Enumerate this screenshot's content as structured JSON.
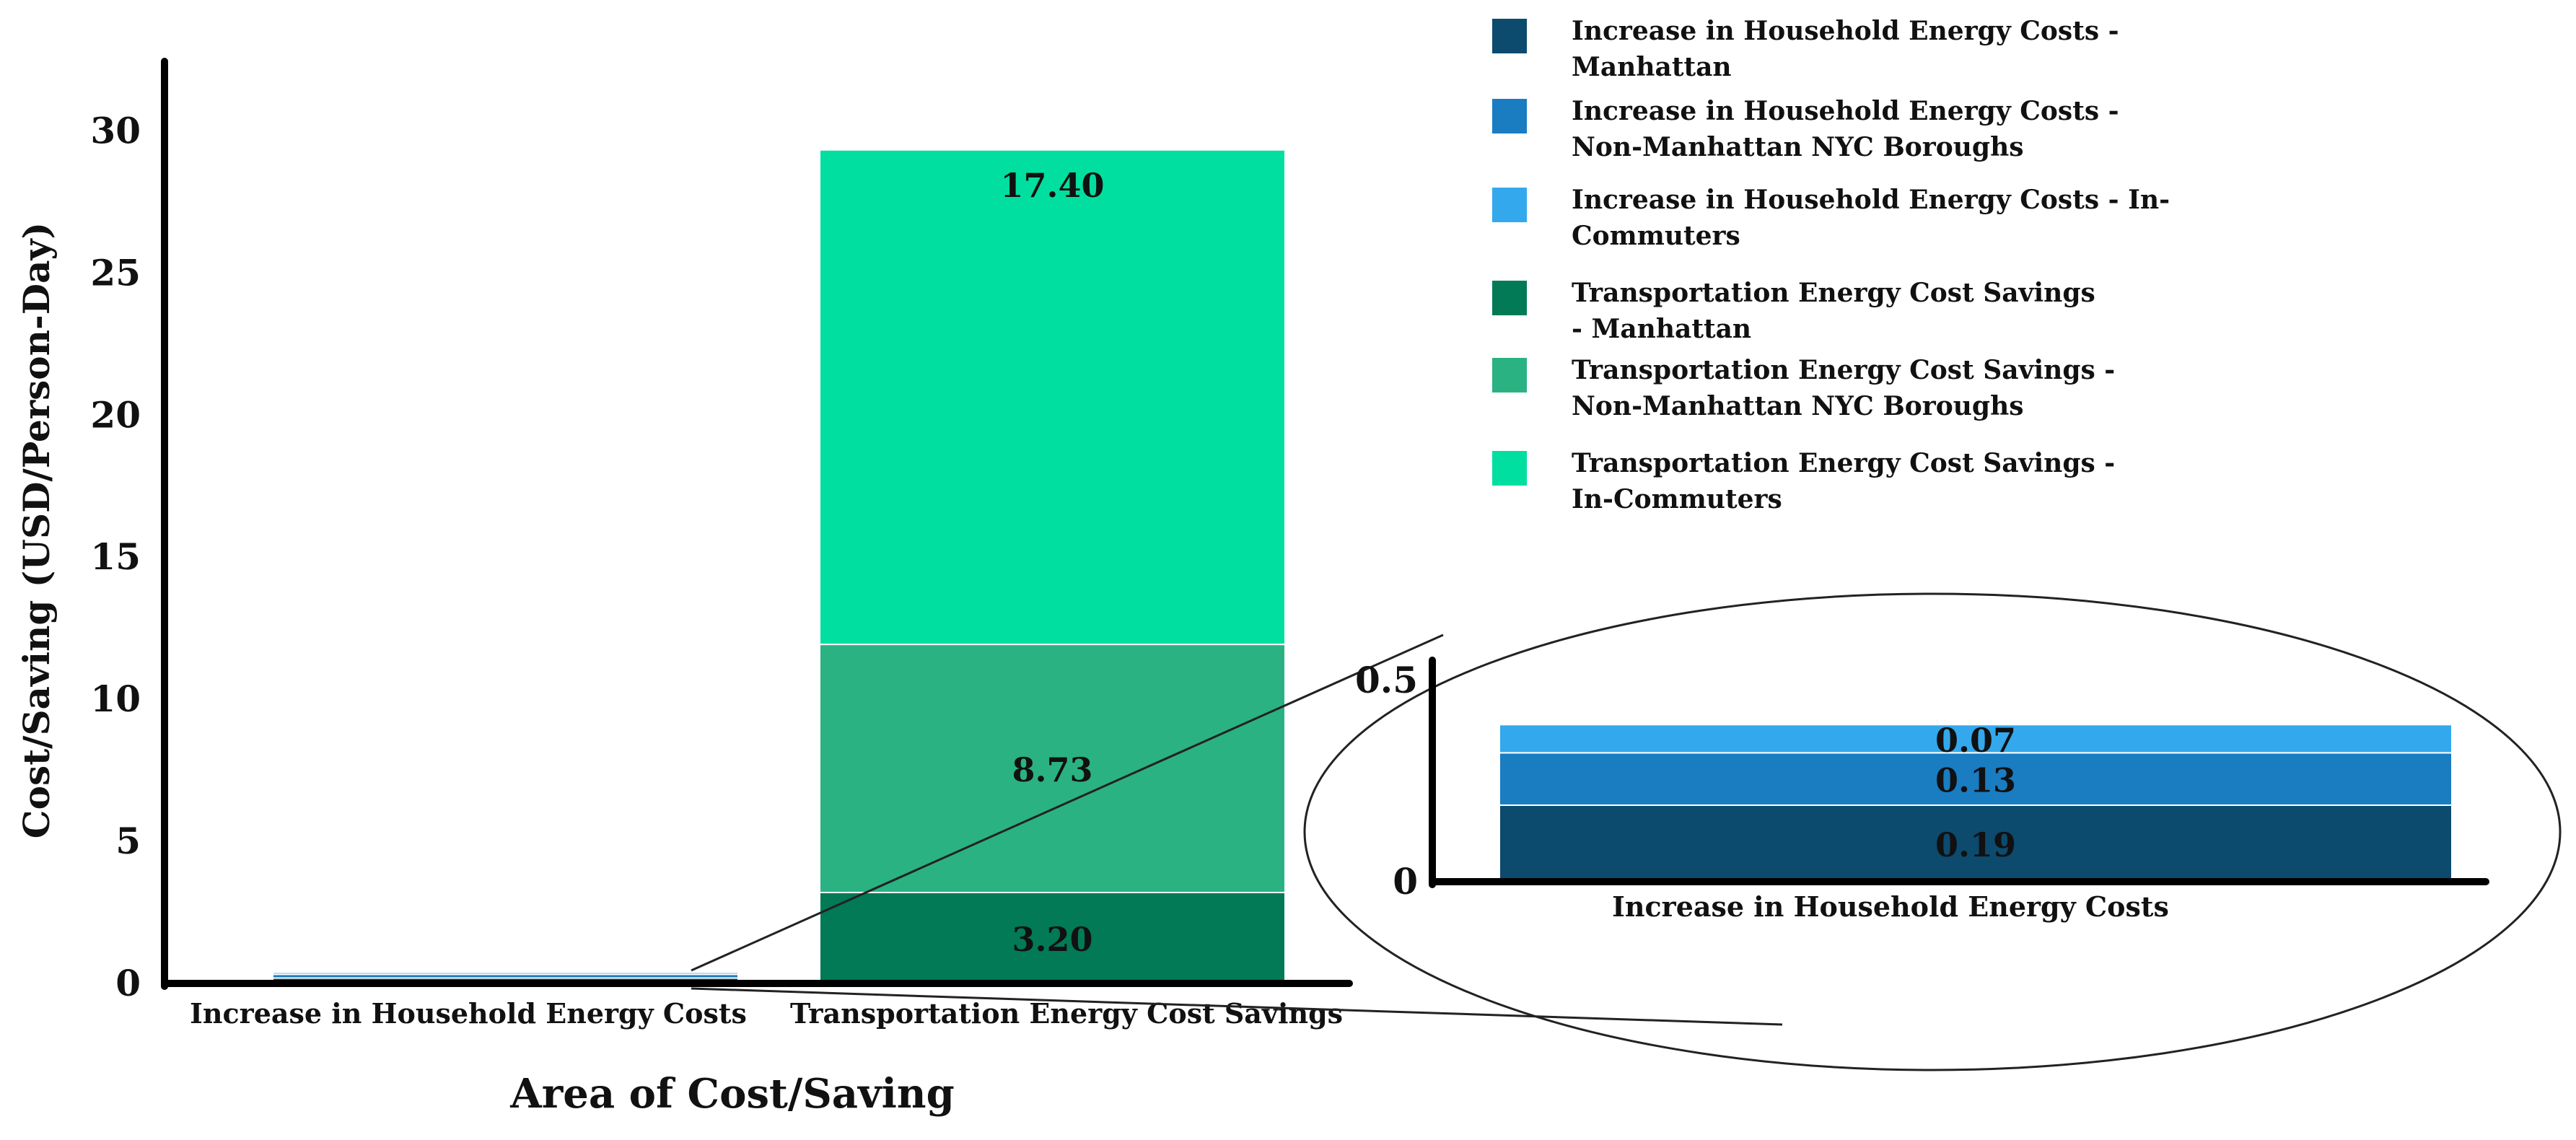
{
  "chart_data": {
    "type": "bar",
    "stacked": true,
    "ylabel": "Cost/Saving (USD/Person-Day)",
    "xlabel": "Area of Cost/Saving",
    "ylim": [
      0,
      31
    ],
    "yticks": [
      0,
      5,
      10,
      15,
      20,
      25,
      30
    ],
    "categories": [
      "Increase in Household Energy Costs",
      "Transportation Energy Cost Savings"
    ],
    "series": [
      {
        "name": "Increase in Household Energy Costs - Manhattan",
        "color": "#0c4a6e",
        "values": [
          0.19,
          0
        ]
      },
      {
        "name": "Increase in Household Energy Costs - Non-Manhattan NYC Boroughs",
        "color": "#1a7cc1",
        "values": [
          0.13,
          0
        ]
      },
      {
        "name": "Increase in Household Energy Costs - In-Commuters",
        "color": "#34a8ec",
        "values": [
          0.07,
          0
        ]
      },
      {
        "name": "Transportation Energy Cost Savings - Manhattan",
        "color": "#017a55",
        "values": [
          0,
          3.2
        ]
      },
      {
        "name": "Transportation Energy Cost Savings - Non-Manhattan NYC Boroughs",
        "color": "#2ab283",
        "values": [
          0,
          8.73
        ]
      },
      {
        "name": "Transportation Energy Cost Savings - In-Commuters",
        "color": "#00df9f",
        "values": [
          0,
          17.4
        ]
      }
    ],
    "data_labels": [
      {
        "category": "Transportation Energy Cost Savings",
        "series": "Transportation Energy Cost Savings - Manhattan",
        "text": "3.20"
      },
      {
        "category": "Transportation Energy Cost Savings",
        "series": "Transportation Energy Cost Savings - Non-Manhattan NYC Boroughs",
        "text": "8.73"
      },
      {
        "category": "Transportation Energy Cost Savings",
        "series": "Transportation Energy Cost Savings - In-Commuters",
        "text": "17.40"
      }
    ],
    "inset": {
      "category": "Increase in Household Energy Costs",
      "ylim": [
        0,
        0.55
      ],
      "yticks": [
        0,
        0.5
      ],
      "ytick_labels": [
        "0",
        "0.5"
      ],
      "labels": [
        "0.19",
        "0.13",
        "0.07"
      ]
    },
    "legend": {
      "placement": "top-right",
      "entries": [
        {
          "label": "Increase in Household Energy Costs -\nManhattan",
          "color": "#0c4a6e"
        },
        {
          "label": "Increase in Household Energy Costs -\nNon-Manhattan NYC Boroughs",
          "color": "#1a7cc1"
        },
        {
          "label": "Increase in Household Energy Costs - In-\nCommuters",
          "color": "#34a8ec"
        },
        {
          "label": "Transportation Energy Cost Savings\n- Manhattan",
          "color": "#017a55"
        },
        {
          "label": "Transportation Energy Cost Savings -\nNon-Manhattan NYC Boroughs",
          "color": "#2ab283"
        },
        {
          "label": "Transportation Energy Cost Savings -\nIn-Commuters",
          "color": "#00df9f"
        }
      ]
    }
  }
}
